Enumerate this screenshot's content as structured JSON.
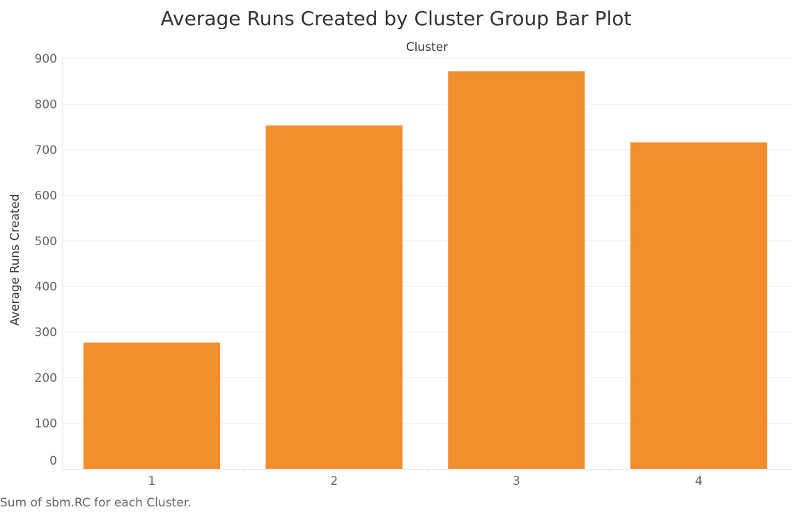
{
  "chart_data": {
    "type": "bar",
    "title": "Average Runs Created by Cluster Group Bar Plot",
    "column_header": "Cluster",
    "xlabel": "",
    "ylabel": "Average Runs Created",
    "categories": [
      "1",
      "2",
      "3",
      "4"
    ],
    "values": [
      277,
      753,
      872,
      716
    ],
    "ylim": [
      0,
      900
    ],
    "yticks": [
      0,
      100,
      200,
      300,
      400,
      500,
      600,
      700,
      800,
      900
    ],
    "grid": true,
    "legend": "none",
    "bar_color": "#F28E2B",
    "caption": "Sum of sbm.RC for each Cluster."
  },
  "colors": {
    "bar": "#F28E2B",
    "gridline": "#eeeeee",
    "tick_text": "#666666",
    "title_text": "#333333"
  }
}
